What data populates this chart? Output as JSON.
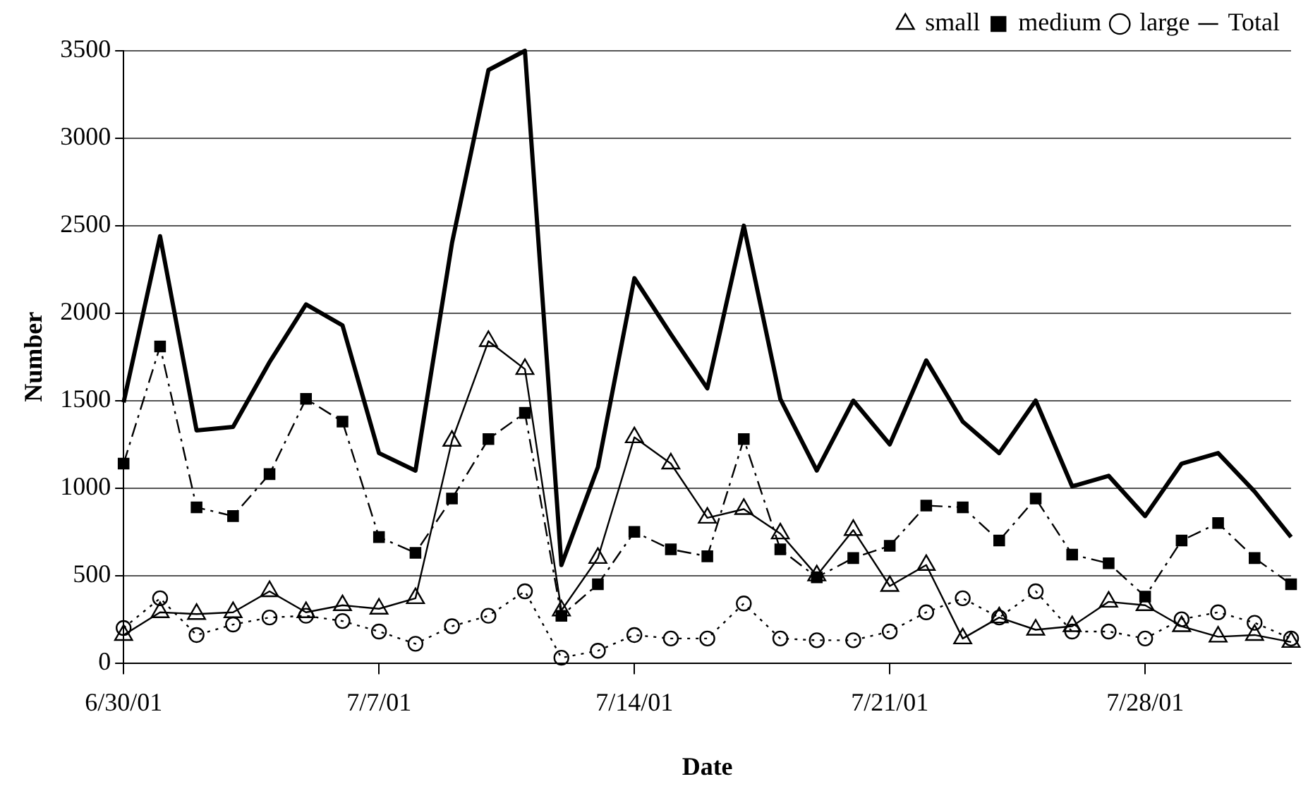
{
  "chart_data": {
    "type": "line",
    "xlabel": "Date",
    "ylabel": "Number",
    "x": [
      "--06-30",
      "--07-01",
      "--07-02",
      "--07-03",
      "--07-04",
      "--07-05",
      "--07-06",
      "--07-07",
      "--07-08",
      "--07-09",
      "--07-10",
      "--07-11",
      "--07-12",
      "--07-13",
      "--07-14",
      "--07-15",
      "--07-16",
      "--07-17",
      "--07-18",
      "--07-19",
      "--07-20",
      "--07-21",
      "--07-22",
      "--07-23",
      "--07-24",
      "--07-25",
      "--07-26",
      "--07-27",
      "--07-28",
      "--07-29",
      "--07-30",
      "--07-31",
      "--08-01"
    ],
    "series": [
      {
        "name": "small",
        "color": "#000000",
        "marker": "triangle",
        "line_style": "solid",
        "values": [
          160,
          290,
          280,
          290,
          410,
          290,
          330,
          310,
          370,
          1270,
          1840,
          1680,
          300,
          600,
          1290,
          1140,
          830,
          880,
          740,
          500,
          760,
          440,
          560,
          140,
          260,
          190,
          210,
          350,
          330,
          210,
          150,
          160,
          120
        ]
      },
      {
        "name": "medium",
        "color": "#000000",
        "marker": "square",
        "line_style": "dashed",
        "values": [
          1140,
          1810,
          890,
          840,
          1080,
          1510,
          1380,
          720,
          630,
          940,
          1280,
          1430,
          270,
          450,
          750,
          650,
          610,
          1280,
          650,
          490,
          600,
          670,
          900,
          890,
          700,
          940,
          620,
          570,
          380,
          700,
          800,
          600,
          450
        ]
      },
      {
        "name": "large",
        "color": "#000000",
        "marker": "circle",
        "line_style": "dotted",
        "values": [
          200,
          370,
          160,
          220,
          260,
          270,
          240,
          180,
          110,
          210,
          270,
          410,
          30,
          70,
          160,
          140,
          140,
          340,
          140,
          130,
          130,
          180,
          290,
          370,
          260,
          410,
          180,
          180,
          140,
          250,
          290,
          230,
          140
        ]
      },
      {
        "name": "Total",
        "color": "#000000",
        "marker": "none",
        "line_style": "solid",
        "values": [
          1490,
          2440,
          1330,
          1350,
          1720,
          2050,
          1930,
          1200,
          1100,
          2400,
          3390,
          3500,
          560,
          1120,
          2200,
          1880,
          1570,
          2500,
          1510,
          1100,
          1500,
          1250,
          1730,
          1380,
          1200,
          1500,
          1010,
          1070,
          840,
          1140,
          1200,
          980,
          720
        ]
      }
    ],
    "xlim": [
      "--06-30",
      "--08-01"
    ],
    "xticks": [
      {
        "value": "--06-30",
        "label": "6/30/01"
      },
      {
        "value": "--07-07",
        "label": "7/7/01"
      },
      {
        "value": "--07-14",
        "label": "7/14/01"
      },
      {
        "value": "--07-21",
        "label": "7/21/01"
      },
      {
        "value": "--07-28",
        "label": "7/28/01"
      }
    ],
    "ylim": [
      0,
      3500
    ],
    "yticks": [
      0,
      500,
      1000,
      1500,
      2000,
      2500,
      3000,
      3500
    ],
    "grid": "y",
    "legend": "top right"
  }
}
